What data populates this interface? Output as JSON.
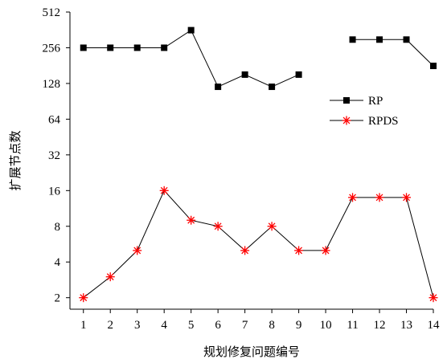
{
  "chart_data": {
    "type": "line",
    "title": "",
    "xlabel": "规划修复问题编号",
    "ylabel": "扩展节点数",
    "x": [
      1,
      2,
      3,
      4,
      5,
      6,
      7,
      8,
      9,
      10,
      11,
      12,
      13,
      14
    ],
    "x_ticks": [
      "1",
      "2",
      "3",
      "4",
      "5",
      "6",
      "7",
      "8",
      "9",
      "10",
      "11",
      "12",
      "13",
      "14"
    ],
    "xlim": [
      0.5,
      14
    ],
    "y_scale": "log2",
    "y_ticks": [
      2,
      4,
      8,
      16,
      32,
      64,
      128,
      256,
      512
    ],
    "ylim": [
      1.6,
      512
    ],
    "grid": false,
    "legend_position": "right",
    "series": [
      {
        "name": "RP",
        "color": "#000000",
        "marker": "square",
        "values": [
          256,
          256,
          256,
          256,
          360,
          120,
          152,
          120,
          152,
          null,
          300,
          300,
          300,
          180
        ]
      },
      {
        "name": "RPDS",
        "color": "#ff0000",
        "marker": "asterisk",
        "values": [
          2,
          3,
          5,
          16,
          9,
          8,
          5,
          8,
          5,
          5,
          14,
          14,
          14,
          2
        ]
      }
    ]
  }
}
